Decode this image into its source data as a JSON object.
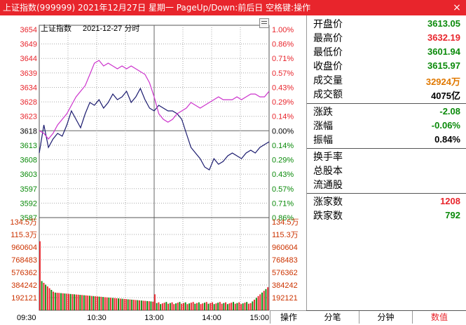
{
  "window": {
    "title": "上证指数(999999)  2021年12月27日  星期一  PageUp/Down:前后日  空格键:操作",
    "close_glyph": "×"
  },
  "chart_header": {
    "name": "上证指数",
    "date": "2021-12-27 分时"
  },
  "colors": {
    "price_line": "#1a1a6e",
    "avg_line": "#cc33cc",
    "up": "#e8252c",
    "down": "#0a8a0a",
    "grid": "#aaaaaa",
    "border": "#555555"
  },
  "chart_data": {
    "type": "line",
    "title": "",
    "xlabel": "",
    "ylabel": "",
    "prev_close": 3618,
    "price_ticks": [
      3654,
      3649,
      3644,
      3639,
      3634,
      3628,
      3623,
      3618,
      3613,
      3608,
      3603,
      3597,
      3592,
      3587
    ],
    "pct_ticks": [
      "1.00%",
      "0.86%",
      "0.71%",
      "0.57%",
      "0.43%",
      "0.29%",
      "0.14%",
      "0.00%",
      "0.14%",
      "0.29%",
      "0.43%",
      "0.57%",
      "0.71%",
      "0.86%"
    ],
    "ylim": [
      3587,
      3654
    ],
    "time_labels": [
      "09:30",
      "10:30",
      "13:00",
      "14:00",
      "15:00"
    ],
    "vol_ticks": [
      "134.5万",
      "115.3万",
      "960604",
      "768483",
      "576362",
      "384242",
      "192121"
    ],
    "vol_max": 1345000,
    "series": [
      {
        "values": [
          3610,
          3620,
          3612,
          3615,
          3617,
          3616,
          3620,
          3625,
          3622,
          3619,
          3624,
          3628,
          3627,
          3629,
          3626,
          3628,
          3631,
          3629,
          3630,
          3632,
          3628,
          3630,
          3633,
          3629,
          3626,
          3625,
          3627,
          3626,
          3625,
          3625,
          3624,
          3622,
          3617,
          3612,
          3610,
          3608,
          3605,
          3604,
          3608,
          3606,
          3607,
          3609,
          3610,
          3609,
          3608,
          3610,
          3611,
          3610,
          3612,
          3613,
          3614
        ]
      },
      {
        "values": [
          3618,
          3617,
          3615,
          3617,
          3620,
          3622,
          3624,
          3627,
          3630,
          3632,
          3634,
          3638,
          3642,
          3643,
          3641,
          3642,
          3641,
          3640,
          3641,
          3640,
          3641,
          3640,
          3639,
          3638,
          3635,
          3630,
          3624,
          3622,
          3621,
          3622,
          3624,
          3625,
          3626,
          3628,
          3627,
          3626,
          3627,
          3628,
          3629,
          3630,
          3629,
          3629,
          3629,
          3630,
          3629,
          3630,
          3631,
          3631,
          3630,
          3630,
          3632
        ]
      }
    ],
    "volume_bars": 120
  },
  "panel": {
    "open": {
      "label": "开盘价",
      "value": "3613.05"
    },
    "high": {
      "label": "最高价",
      "value": "3632.19"
    },
    "low": {
      "label": "最低价",
      "value": "3601.94"
    },
    "close": {
      "label": "收盘价",
      "value": "3615.97"
    },
    "volume": {
      "label": "成交量",
      "value": "32924万"
    },
    "amount": {
      "label": "成交额",
      "value": "4075亿"
    },
    "change": {
      "label": "涨跌",
      "value": "-2.08"
    },
    "change_pct": {
      "label": "涨幅",
      "value": "-0.06%"
    },
    "amplitude": {
      "label": "振幅",
      "value": "0.84%"
    },
    "turnover": {
      "label": "换手率",
      "value": ""
    },
    "total_shares": {
      "label": "总股本",
      "value": ""
    },
    "float_shares": {
      "label": "流通股",
      "value": ""
    },
    "up_count": {
      "label": "涨家数",
      "value": "1208"
    },
    "down_count": {
      "label": "跌家数",
      "value": "792"
    }
  },
  "bottom": {
    "op_label": "操作",
    "tabs": [
      "分笔",
      "分钟",
      "数值"
    ]
  }
}
